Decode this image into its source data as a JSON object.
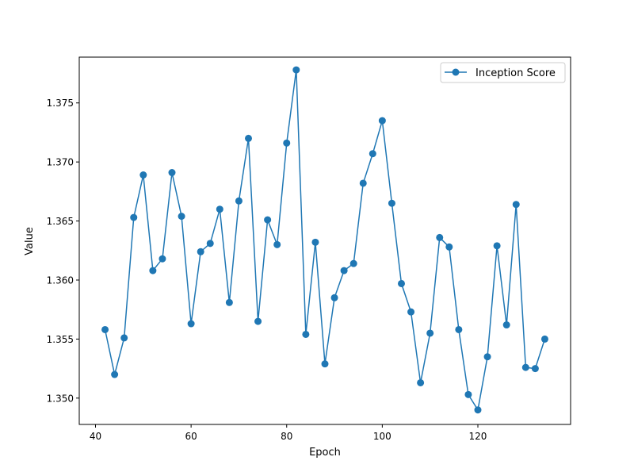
{
  "chart_data": {
    "type": "line",
    "xlabel": "Epoch",
    "ylabel": "Value",
    "xlim": [
      36.6,
      139.4
    ],
    "ylim": [
      1.34777,
      1.37888
    ],
    "xticks": [
      40,
      60,
      80,
      100,
      120
    ],
    "yticks": [
      1.35,
      1.355,
      1.36,
      1.365,
      1.37,
      1.375
    ],
    "xtick_labels": [
      "40",
      "60",
      "80",
      "100",
      "120"
    ],
    "ytick_labels": [
      "1.350",
      "1.355",
      "1.360",
      "1.365",
      "1.370",
      "1.375"
    ],
    "grid": false,
    "legend_position": "top-right",
    "series": [
      {
        "name": "Inception Score",
        "color": "#1f77b4",
        "marker": "circle",
        "x": [
          42,
          44,
          46,
          48,
          50,
          52,
          54,
          56,
          58,
          60,
          62,
          64,
          66,
          68,
          70,
          72,
          74,
          76,
          78,
          80,
          82,
          84,
          86,
          88,
          90,
          92,
          94,
          96,
          98,
          100,
          102,
          104,
          106,
          108,
          110,
          112,
          114,
          116,
          118,
          120,
          122,
          124,
          126,
          128,
          130,
          132,
          134
        ],
        "y": [
          1.3558,
          1.352,
          1.3551,
          1.3653,
          1.3689,
          1.3608,
          1.3618,
          1.3691,
          1.3654,
          1.3563,
          1.3624,
          1.3631,
          1.366,
          1.3581,
          1.3667,
          1.372,
          1.3565,
          1.3651,
          1.363,
          1.3716,
          1.3778,
          1.3554,
          1.3632,
          1.3529,
          1.3585,
          1.3608,
          1.3614,
          1.3682,
          1.3707,
          1.3735,
          1.3665,
          1.3597,
          1.3573,
          1.3513,
          1.3555,
          1.3636,
          1.3628,
          1.3558,
          1.3503,
          1.349,
          1.3535,
          1.3629,
          1.3562,
          1.3664,
          1.3526,
          1.3525,
          1.355
        ]
      }
    ]
  }
}
